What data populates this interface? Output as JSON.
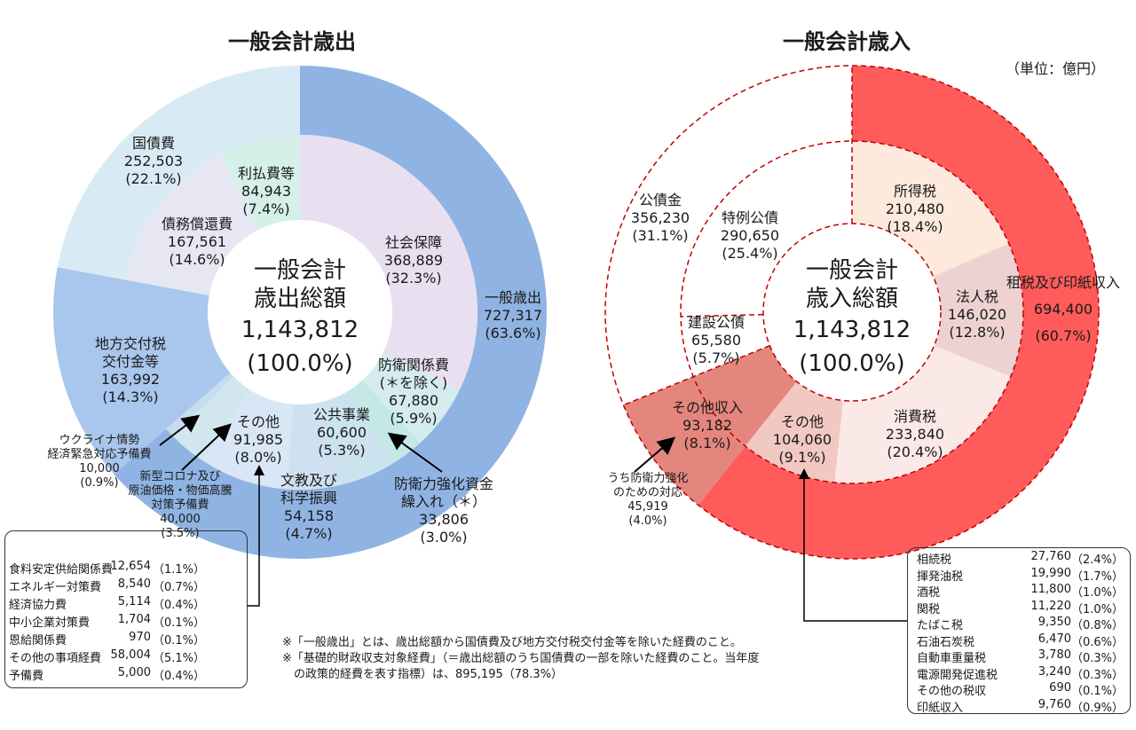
{
  "expenditure": {
    "title": "一般会計歳出",
    "center": [
      "一般会計",
      "歳出総額",
      "1,143,812",
      "(100.0%)"
    ],
    "labels": {
      "general": [
        "一般歳出",
        "727,317",
        "(63.6%)"
      ],
      "debt": [
        "国債費",
        "252,503",
        "(22.1%)"
      ],
      "interest": [
        "利払費等",
        "84,943",
        "(7.4%)"
      ],
      "redemption": [
        "債務償還費",
        "167,561",
        "(14.6%)"
      ],
      "social": [
        "社会保障",
        "368,889",
        "(32.3%)"
      ],
      "defense": [
        "防衛関係費",
        "(＊を除く)",
        "67,880",
        "(5.9%)"
      ],
      "public_works": [
        "公共事業",
        "60,600",
        "(5.3%)"
      ],
      "defense_fund": [
        "防衛力強化資金",
        "繰入れ（＊）",
        "33,806",
        "(3.0%)"
      ],
      "education": [
        "文教及び",
        "科学振興",
        "54,158",
        "(4.7%)"
      ],
      "other": [
        "その他",
        "91,985",
        "(8.0%)"
      ],
      "local": [
        "地方交付税",
        "交付金等",
        "163,992",
        "(14.3%)"
      ],
      "ukraine": [
        "ウクライナ情勢",
        "経済緊急対応予備費",
        "10,000",
        "(0.9%)"
      ],
      "corona": [
        "新型コロナ及び",
        "原油価格・物価高騰",
        "対策予備費",
        "40,000",
        "(3.5%)"
      ]
    },
    "breakdown": [
      {
        "name": "食料安定供給関係費",
        "value": "12,654",
        "pct": "（1.1%）"
      },
      {
        "name": "エネルギー対策費",
        "value": "8,540",
        "pct": "（0.7%）"
      },
      {
        "name": "経済協力費",
        "value": "5,114",
        "pct": "（0.4%）"
      },
      {
        "name": "中小企業対策費",
        "value": "1,704",
        "pct": "（0.1%）"
      },
      {
        "name": "恩給関係費",
        "value": "970",
        "pct": "（0.1%）"
      },
      {
        "name": "その他の事項経費",
        "value": "58,004",
        "pct": "（5.1%）"
      },
      {
        "name": "予備費",
        "value": "5,000",
        "pct": "（0.4%）"
      }
    ]
  },
  "revenue": {
    "title": "一般会計歳入",
    "unit": "（単位：億円）",
    "center": [
      "一般会計",
      "歳入総額",
      "1,143,812",
      "(100.0%)"
    ],
    "labels": {
      "tax_total": [
        "租税及び印紙収入",
        "694,400",
        "(60.7%)"
      ],
      "income_tax": [
        "所得税",
        "210,480",
        "(18.4%)"
      ],
      "corp_tax": [
        "法人税",
        "146,020",
        "(12.8%)"
      ],
      "consumption": [
        "消費税",
        "233,840",
        "(20.4%)"
      ],
      "other_tax": [
        "その他",
        "104,060",
        "(9.1%)"
      ],
      "other_income": [
        "その他収入",
        "93,182",
        "(8.1%)"
      ],
      "defense_measure": [
        "うち防衛力強化",
        "のための対応",
        "45,919",
        "(4.0%)"
      ],
      "bonds": [
        "公債金",
        "356,230",
        "(31.1%)"
      ],
      "special_bonds": [
        "特例公債",
        "290,650",
        "(25.4%)"
      ],
      "construction_bonds": [
        "建設公債",
        "65,580",
        "(5.7%)"
      ]
    },
    "breakdown": [
      {
        "name": "相続税",
        "value": "27,760",
        "pct": "（2.4%）"
      },
      {
        "name": "揮発油税",
        "value": "19,990",
        "pct": "（1.7%）"
      },
      {
        "name": "酒税",
        "value": "11,800",
        "pct": "（1.0%）"
      },
      {
        "name": "関税",
        "value": "11,220",
        "pct": "（1.0%）"
      },
      {
        "name": "たばこ税",
        "value": "9,350",
        "pct": "（0.8%）"
      },
      {
        "name": "石油石炭税",
        "value": "6,470",
        "pct": "（0.6%）"
      },
      {
        "name": "自動車重量税",
        "value": "3,780",
        "pct": "（0.3%）"
      },
      {
        "name": "電源開発促進税",
        "value": "3,240",
        "pct": "（0.3%）"
      },
      {
        "name": "その他の税収",
        "value": "690",
        "pct": "（0.1%）"
      },
      {
        "name": "印紙収入",
        "value": "9,760",
        "pct": "（0.9%）"
      }
    ]
  },
  "notes": [
    "※「一般歳出」とは、歳出総額から国債費及び地方交付税交付金等を除いた経費のこと。",
    "※「基礎的財政収支対象経費」（＝歳出総額のうち国債費の一部を除いた経費のこと。当年度",
    "　の政策的経費を表す指標）は、895,195（78.3%）"
  ],
  "chart_data": [
    {
      "type": "pie",
      "title": "一般会計歳出",
      "total": 1143812,
      "outer_ring": [
        {
          "label": "一般歳出",
          "value": 727317
        },
        {
          "label": "地方交付税交付金等",
          "value": 163992
        },
        {
          "label": "国債費",
          "value": 252503
        }
      ],
      "inner_ring": [
        {
          "label": "社会保障",
          "value": 368889
        },
        {
          "label": "防衛関係費",
          "value": 67880
        },
        {
          "label": "防衛力強化資金繰入れ",
          "value": 33806
        },
        {
          "label": "公共事業",
          "value": 60600
        },
        {
          "label": "文教及び科学振興",
          "value": 54158
        },
        {
          "label": "その他",
          "value": 91985
        },
        {
          "label": "新型コロナ及び原油価格・物価高騰対策予備費",
          "value": 40000
        },
        {
          "label": "ウクライナ情勢経済緊急対応予備費",
          "value": 10000
        },
        {
          "label": "地方交付税交付金等",
          "value": 163992
        },
        {
          "label": "債務償還費",
          "value": 167561
        },
        {
          "label": "利払費等",
          "value": 84943
        }
      ],
      "colors": {
        "outer": [
          "#8fb4e3",
          "#a9c6ec",
          "#d8ebf5"
        ],
        "inner": [
          "#e8e0f0",
          "#d4ecee",
          "#c3e8e6",
          "#cbe3ee",
          "#cfe0f0",
          "#d9e6f5",
          "#d2e6f0",
          "#c8dcef",
          "#a9c6ec",
          "#e6e7f2",
          "#d4f0e8"
        ]
      }
    },
    {
      "type": "pie",
      "title": "一般会計歳入",
      "total": 1143812,
      "outer_ring": [
        {
          "label": "租税及び印紙収入",
          "value": 694400
        },
        {
          "label": "その他収入",
          "value": 93182
        },
        {
          "label": "公債金",
          "value": 356230
        }
      ],
      "inner_ring": [
        {
          "label": "所得税",
          "value": 210480
        },
        {
          "label": "法人税",
          "value": 146020
        },
        {
          "label": "消費税",
          "value": 233840
        },
        {
          "label": "その他",
          "value": 104060
        },
        {
          "label": "その他収入",
          "value": 93182
        },
        {
          "label": "建設公債",
          "value": 65580
        },
        {
          "label": "特例公債",
          "value": 290650
        }
      ],
      "colors": {
        "outer": [
          "#ff5b5b",
          "#e4867e",
          "#ffffff"
        ],
        "inner": [
          "#fdeadd",
          "#eed2d2",
          "#fbe9e8",
          "#f2c8c2",
          "#e4867e",
          "#ffffff",
          "#ffffff"
        ]
      }
    }
  ]
}
